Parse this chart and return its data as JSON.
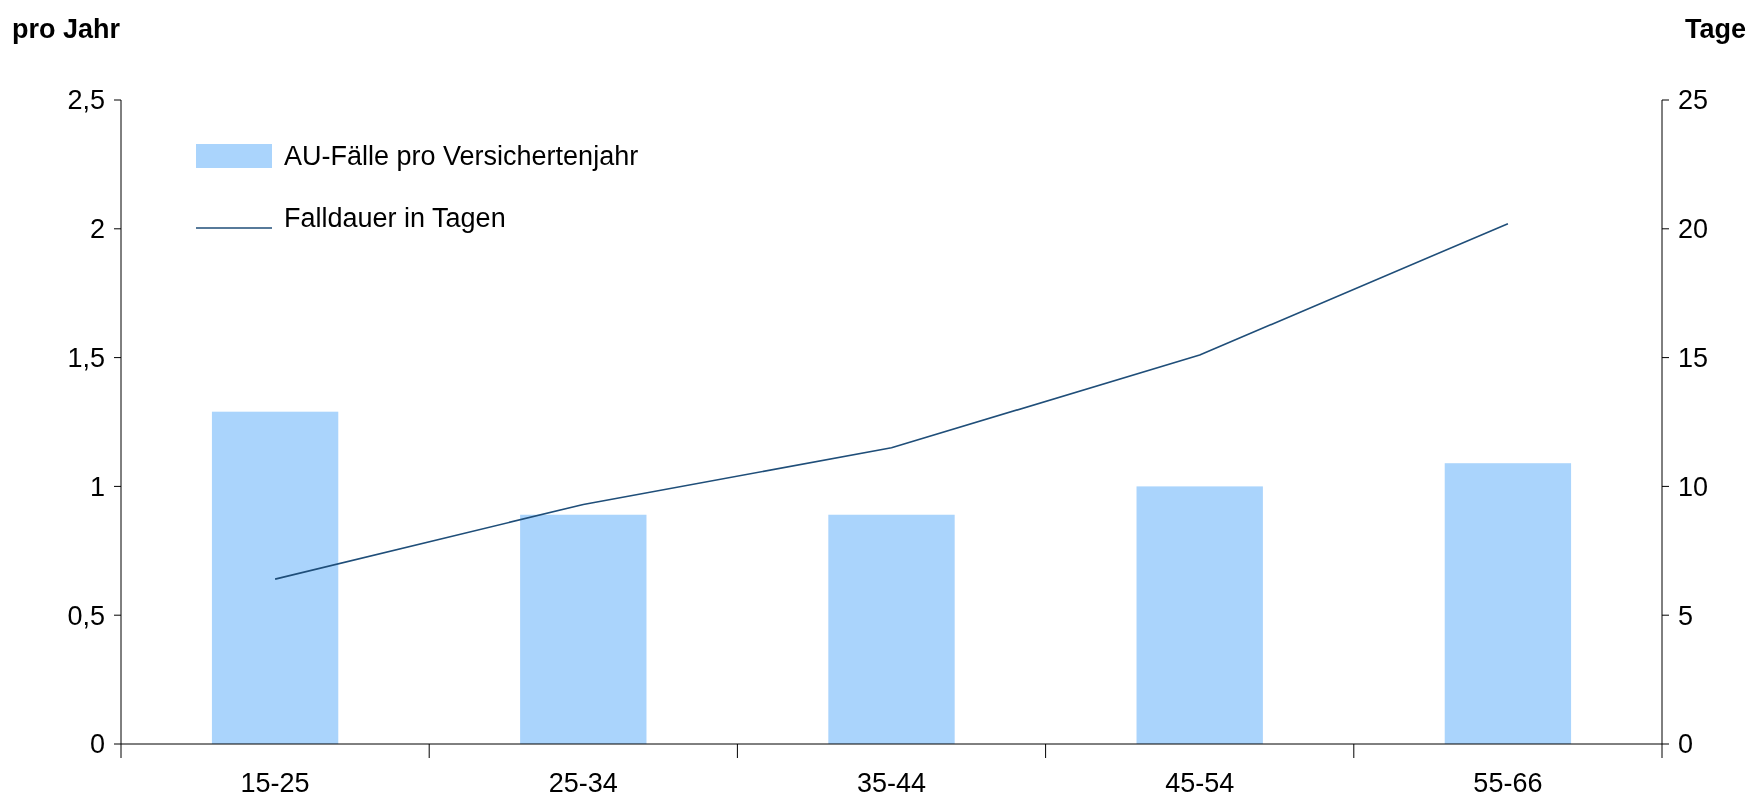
{
  "chart_data": {
    "type": "bar",
    "ylabel": "pro Jahr",
    "y2label": "Tage",
    "categories": [
      "15-25",
      "25-34",
      "35-44",
      "45-54",
      "55-66"
    ],
    "series": [
      {
        "name": "AU-Fälle pro Versichertenjahr",
        "color": "#aad4fc",
        "values": [
          1.29,
          0.89,
          0.89,
          1.0,
          1.09
        ]
      },
      {
        "name": "Falldauer in Tagen",
        "type": "line",
        "axis": "y2",
        "color": "#1f4e79",
        "values": [
          6.4,
          9.3,
          11.5,
          15.1,
          20.2
        ]
      }
    ],
    "ylim": [
      0,
      2.5
    ],
    "yticks": [
      0,
      {
        "value": 0.5,
        "label": "0,5"
      },
      1,
      {
        "value": 1.5,
        "label": "1,5"
      },
      2,
      {
        "value": 2.5,
        "label": "2,5"
      }
    ],
    "y2lim": [
      0,
      25
    ],
    "y2ticks": [
      0,
      5,
      10,
      15,
      20,
      25
    ],
    "legend": "top left",
    "grid": false,
    "marker": "none",
    "line_style": "solid"
  }
}
